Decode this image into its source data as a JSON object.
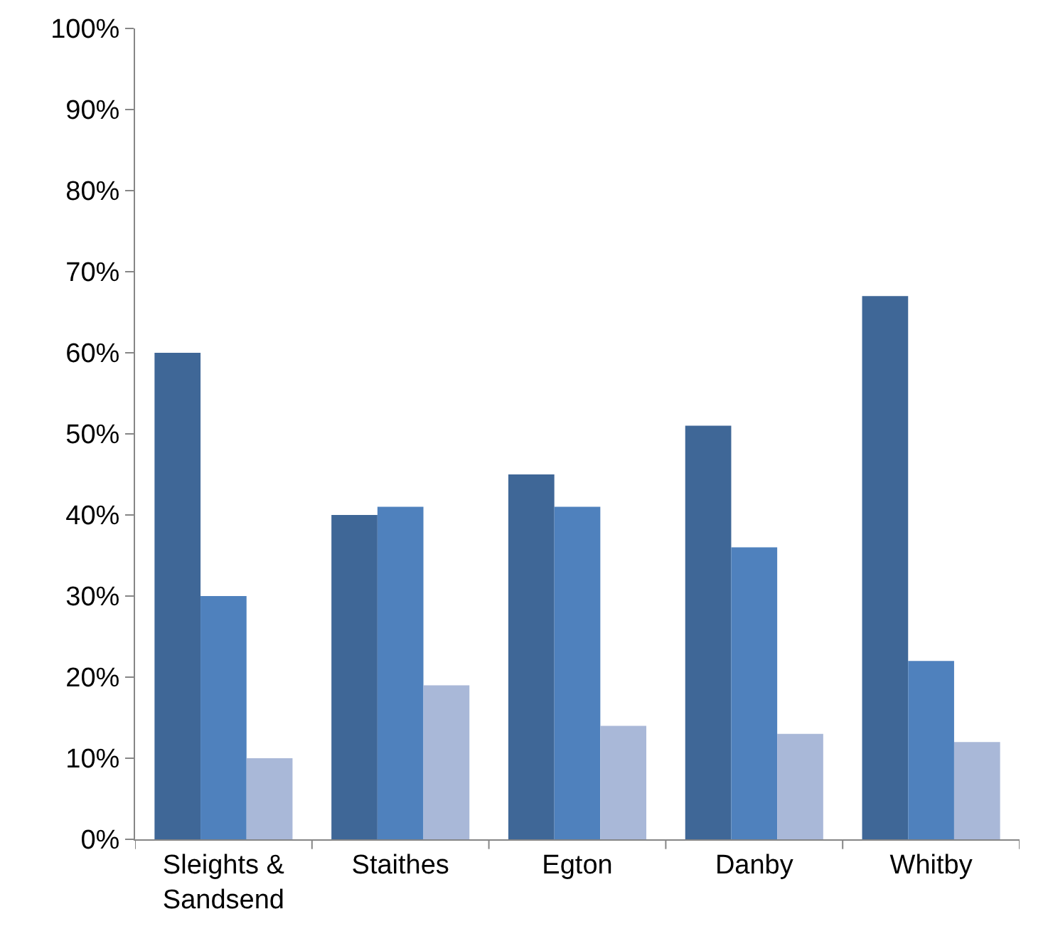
{
  "chart_data": {
    "type": "bar",
    "categories": [
      "Sleights &\nSandsend",
      "Staithes",
      "Egton",
      "Danby",
      "Whitby"
    ],
    "series": [
      {
        "color": "#3f6797",
        "values": [
          60,
          40,
          45,
          51,
          67
        ]
      },
      {
        "color": "#4f81bd",
        "values": [
          30,
          41,
          41,
          36,
          22
        ]
      },
      {
        "color": "#a9b8d8",
        "values": [
          10,
          19,
          14,
          13,
          12
        ]
      }
    ],
    "ylim": [
      0,
      100
    ],
    "yticks": [
      {
        "value": 0,
        "label": "0%"
      },
      {
        "value": 10,
        "label": "10%"
      },
      {
        "value": 20,
        "label": "20%"
      },
      {
        "value": 30,
        "label": "30%"
      },
      {
        "value": 40,
        "label": "40%"
      },
      {
        "value": 50,
        "label": "50%"
      },
      {
        "value": 60,
        "label": "60%"
      },
      {
        "value": 70,
        "label": "70%"
      },
      {
        "value": 80,
        "label": "80%"
      },
      {
        "value": 90,
        "label": "90%"
      },
      {
        "value": 100,
        "label": "100%"
      }
    ]
  }
}
